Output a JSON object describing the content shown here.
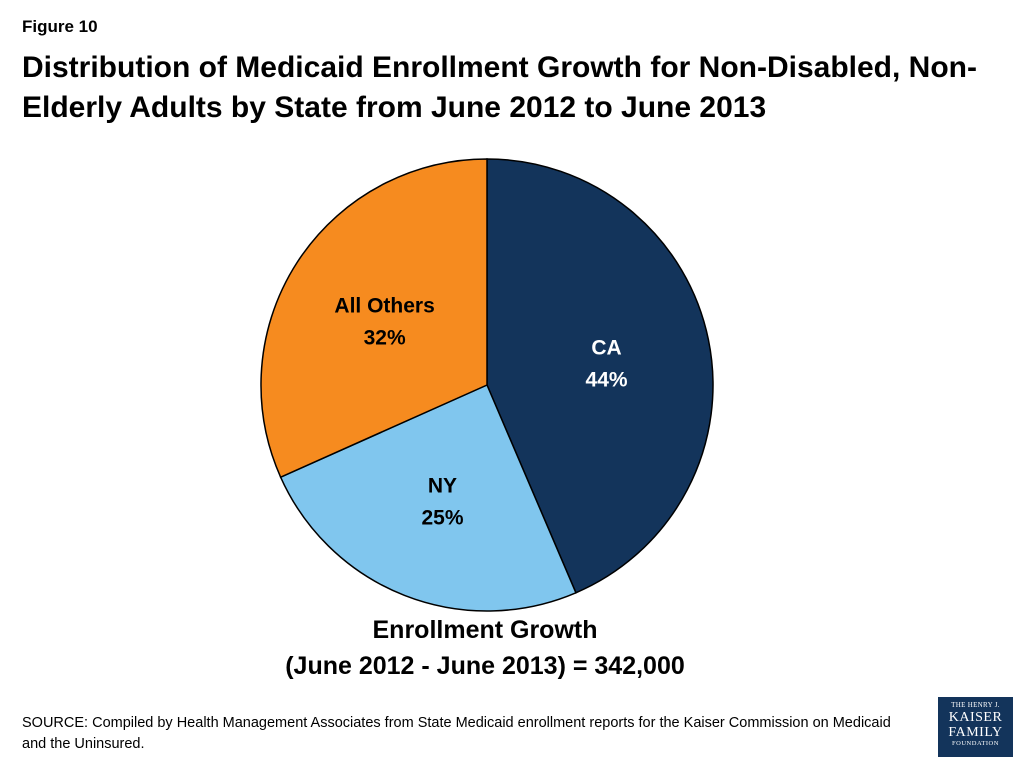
{
  "figure_label": "Figure 10",
  "title": "Distribution of Medicaid Enrollment Growth for Non-Disabled, Non-Elderly Adults by State from June 2012 to June 2013",
  "caption_line1": "Enrollment Growth",
  "caption_line2": "(June 2012 - June 2013) = 342,000",
  "source": "SOURCE: Compiled by Health Management Associates from State Medicaid enrollment reports for the Kaiser Commission on Medicaid and the Uninsured.",
  "logo": {
    "line1": "THE HENRY J.",
    "line2": "KAISER",
    "line3": "FAMILY",
    "line4": "FOUNDATION"
  },
  "chart_data": {
    "type": "pie",
    "start_angle_deg": 0,
    "direction": "clockwise",
    "slices": [
      {
        "label": "CA",
        "value": 44,
        "value_label": "44%",
        "color": "#13345b",
        "label_color": "#ffffff"
      },
      {
        "label": "NY",
        "value": 25,
        "value_label": "25%",
        "color": "#80c6ee",
        "label_color": "#000000"
      },
      {
        "label": "All Others",
        "value": 32,
        "value_label": "32%",
        "color": "#f68b1f",
        "label_color": "#000000"
      }
    ]
  }
}
